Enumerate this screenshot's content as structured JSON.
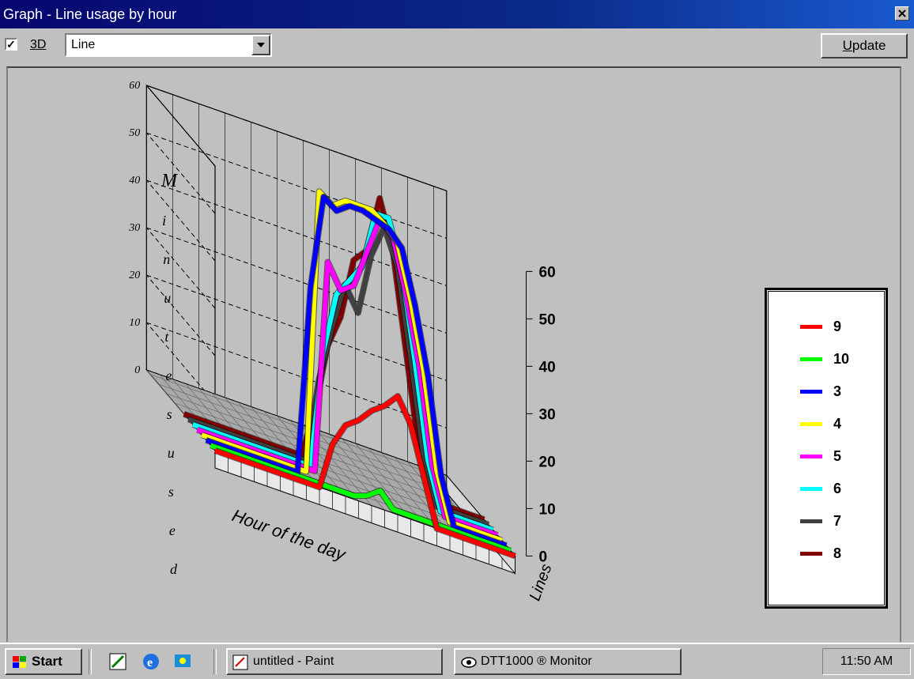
{
  "window": {
    "title": "Graph - Line usage by hour"
  },
  "toolbar": {
    "three_d_checked": true,
    "three_d_label": "3D",
    "chart_type_value": "Line",
    "update_label": "Update"
  },
  "chart_data": {
    "type": "line",
    "view": "3d",
    "ylabel": "Minutes used",
    "xlabel": "Hour of the day",
    "zlabel": "Lines",
    "ylim": [
      0,
      60
    ],
    "y_ticks": [
      "0",
      "10",
      "20",
      "30",
      "40",
      "50",
      "60"
    ],
    "x": [
      0,
      1,
      2,
      3,
      4,
      5,
      6,
      7,
      8,
      9,
      10,
      11,
      12,
      13,
      14,
      15,
      16,
      17,
      18,
      19,
      20,
      21,
      22,
      23
    ],
    "series": [
      {
        "name": "9",
        "color": "#ff0000",
        "values": [
          0,
          0,
          0,
          0,
          0,
          0,
          0,
          0,
          0,
          10,
          15,
          17,
          20,
          22,
          25,
          20,
          10,
          0,
          0,
          0,
          0,
          0,
          0,
          0
        ]
      },
      {
        "name": "10",
        "color": "#00ff00",
        "values": [
          0,
          0,
          0,
          0,
          0,
          0,
          0,
          0,
          0,
          0,
          0,
          0,
          1,
          3,
          0,
          0,
          0,
          0,
          0,
          0,
          0,
          0,
          0,
          0
        ]
      },
      {
        "name": "3",
        "color": "#0000ff",
        "values": [
          0,
          0,
          0,
          0,
          0,
          0,
          0,
          0,
          40,
          60,
          58,
          60,
          60,
          59,
          58,
          55,
          44,
          30,
          10,
          0,
          0,
          0,
          0,
          0
        ]
      },
      {
        "name": "4",
        "color": "#ffff00",
        "values": [
          0,
          0,
          0,
          0,
          0,
          0,
          0,
          0,
          0,
          60,
          58,
          60,
          60,
          60,
          58,
          55,
          44,
          30,
          10,
          0,
          0,
          0,
          0,
          0
        ]
      },
      {
        "name": "5",
        "color": "#ff00ff",
        "values": [
          0,
          0,
          0,
          0,
          0,
          0,
          0,
          0,
          0,
          0,
          45,
          40,
          42,
          50,
          58,
          55,
          44,
          30,
          10,
          0,
          0,
          0,
          0,
          0
        ]
      },
      {
        "name": "6",
        "color": "#00ffff",
        "values": [
          0,
          0,
          0,
          0,
          0,
          0,
          0,
          0,
          0,
          0,
          25,
          38,
          42,
          46,
          58,
          58,
          48,
          30,
          10,
          0,
          0,
          0,
          0,
          0
        ]
      },
      {
        "name": "7",
        "color": "#404040",
        "values": [
          0,
          0,
          0,
          0,
          0,
          0,
          0,
          0,
          0,
          0,
          18,
          30,
          40,
          35,
          48,
          55,
          48,
          30,
          10,
          0,
          0,
          0,
          0,
          0
        ]
      },
      {
        "name": "8",
        "color": "#800000",
        "values": [
          0,
          0,
          0,
          0,
          0,
          0,
          0,
          0,
          0,
          0,
          10,
          25,
          32,
          45,
          48,
          60,
          50,
          30,
          10,
          0,
          0,
          0,
          0,
          0
        ]
      }
    ],
    "grid": true,
    "legend": "right"
  },
  "taskbar": {
    "start_label": "Start",
    "tasks": [
      {
        "label": "untitled - Paint"
      },
      {
        "label": "DTT1000 ® Monitor"
      }
    ],
    "clock": "11:50 AM"
  }
}
